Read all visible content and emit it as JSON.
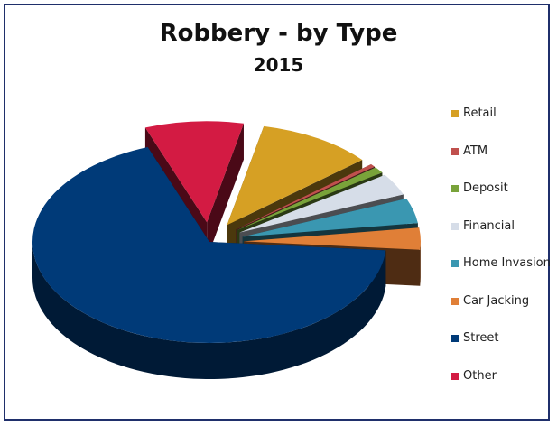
{
  "chart_data": {
    "type": "pie",
    "title": "Robbery - by Type",
    "subtitle": "2015",
    "legend_position": "right",
    "categories": [
      "Retail",
      "ATM",
      "Deposit",
      "Financial",
      "Home Invasion",
      "Car Jacking",
      "Street",
      "Other"
    ],
    "values": [
      10.5,
      0.5,
      1,
      3.5,
      4,
      3.5,
      68,
      9
    ],
    "value_unit": "percent (estimated)",
    "colors": [
      "#D6A024",
      "#C0504D",
      "#79A33A",
      "#D6DDE8",
      "#3A97B1",
      "#E07F37",
      "#003A78",
      "#D31B43"
    ],
    "exploded": [
      "Retail",
      "ATM",
      "Deposit",
      "Financial",
      "Home Invasion",
      "Car Jacking",
      "Other"
    ],
    "style": "3d-exploded"
  }
}
